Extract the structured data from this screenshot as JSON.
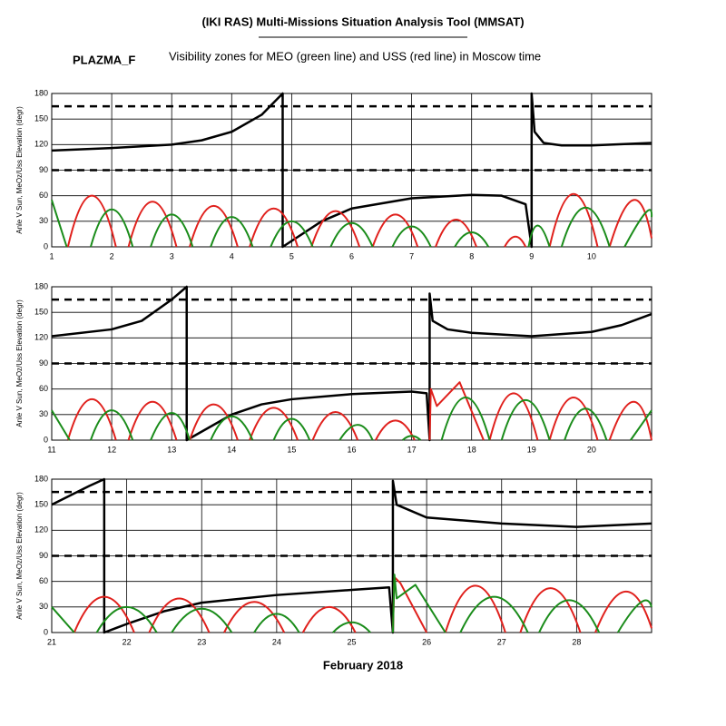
{
  "header": {
    "title": "(IKI RAS) Multi-Missions Situation Analysis Tool (MMSAT)",
    "tag": "PLAZMA_F",
    "subtitle": "Visibility zones for MEO (green line) and USS (red line) in Moscow time",
    "x_label": "February 2018"
  },
  "chart_data": [
    {
      "type": "line",
      "ylabel": "Anle V Sun, MeOz/Uss Elevation (degr)",
      "xlim": [
        1,
        11
      ],
      "xticks": [
        1,
        2,
        3,
        4,
        5,
        6,
        7,
        8,
        9,
        10
      ],
      "ylim": [
        0,
        180
      ],
      "yticks": [
        0,
        30,
        60,
        90,
        120,
        150,
        180
      ],
      "grid": true,
      "hlines": [
        90,
        165
      ],
      "series": [
        {
          "color": "#000000",
          "x": [
            1,
            2,
            3,
            3.5,
            4,
            4.5,
            4.85,
            4.85,
            5.5,
            6,
            7,
            8,
            8.5,
            8.9,
            9.0,
            9.0,
            9.05,
            9.2,
            9.5,
            10,
            11
          ],
          "values": [
            113,
            116,
            120,
            125,
            135,
            155,
            180,
            0,
            30,
            45,
            57,
            61,
            60,
            50,
            0,
            180,
            135,
            122,
            119,
            119,
            122
          ]
        },
        {
          "color": "#e0201c",
          "x": [
            1.27,
            1.67,
            2.07,
            null,
            2.28,
            2.68,
            3.08,
            null,
            3.3,
            3.7,
            4.1,
            null,
            4.3,
            4.7,
            5.1,
            null,
            5.33,
            5.73,
            6.13,
            null,
            6.35,
            6.73,
            7.1,
            null,
            7.4,
            7.74,
            8.08,
            null,
            8.55,
            8.73,
            8.9,
            null,
            9.3,
            9.7,
            10.1,
            null,
            10.3,
            10.7,
            11.0
          ],
          "values": [
            0,
            60,
            0,
            null,
            0,
            53,
            0,
            null,
            0,
            48,
            0,
            null,
            0,
            45,
            0,
            null,
            0,
            42,
            0,
            null,
            0,
            38,
            0,
            null,
            0,
            32,
            0,
            null,
            0,
            12,
            0,
            null,
            0,
            62,
            0,
            null,
            0,
            55,
            10
          ]
        },
        {
          "color": "#1a8c1a",
          "x": [
            1.0,
            1.25,
            null,
            1.65,
            2.0,
            2.35,
            null,
            2.65,
            3.0,
            3.35,
            null,
            3.65,
            4.0,
            4.35,
            null,
            4.65,
            5.0,
            5.35,
            null,
            5.65,
            6.0,
            6.35,
            null,
            6.68,
            7.0,
            7.32,
            null,
            7.72,
            8.0,
            8.28,
            null,
            8.95,
            9.1,
            9.3,
            null,
            9.5,
            9.9,
            10.3,
            null,
            10.55,
            10.9,
            11.0
          ],
          "values": [
            55,
            0,
            null,
            0,
            44,
            0,
            null,
            0,
            38,
            0,
            null,
            0,
            35,
            0,
            null,
            0,
            30,
            0,
            null,
            0,
            28,
            0,
            null,
            0,
            24,
            0,
            null,
            0,
            17,
            0,
            null,
            0,
            25,
            0,
            null,
            0,
            46,
            0,
            null,
            0,
            40,
            35
          ]
        }
      ]
    },
    {
      "type": "line",
      "ylabel": "Anle V Sun, MeOz/Uss Elevation (degr)",
      "xlim": [
        11,
        21
      ],
      "xticks": [
        11,
        12,
        13,
        14,
        15,
        16,
        17,
        18,
        19,
        20
      ],
      "ylim": [
        0,
        180
      ],
      "yticks": [
        0,
        30,
        60,
        90,
        120,
        150,
        180
      ],
      "grid": true,
      "hlines": [
        90,
        165
      ],
      "series": [
        {
          "color": "#000000",
          "x": [
            11,
            12,
            12.5,
            13,
            13.25,
            13.25,
            14,
            14.5,
            15,
            16,
            17,
            17.25,
            17.3,
            17.3,
            17.35,
            17.6,
            18,
            19,
            20,
            20.5,
            21
          ],
          "values": [
            122,
            130,
            140,
            165,
            180,
            0,
            30,
            42,
            48,
            54,
            57,
            55,
            0,
            172,
            140,
            130,
            126,
            122,
            127,
            135,
            148
          ]
        },
        {
          "color": "#e0201c",
          "x": [
            11.27,
            11.67,
            12.07,
            null,
            12.28,
            12.68,
            13.08,
            null,
            13.3,
            13.7,
            14.1,
            null,
            14.3,
            14.7,
            15.1,
            null,
            15.35,
            15.73,
            16.1,
            null,
            16.4,
            16.73,
            17.05,
            null,
            17.3,
            17.32,
            17.42,
            17.8,
            18.2,
            null,
            18.3,
            18.7,
            19.1,
            null,
            19.3,
            19.7,
            20.1,
            null,
            20.3,
            20.7,
            21.0
          ],
          "values": [
            0,
            48,
            0,
            null,
            0,
            45,
            0,
            null,
            0,
            42,
            0,
            null,
            0,
            38,
            0,
            null,
            0,
            33,
            0,
            null,
            0,
            23,
            0,
            null,
            0,
            60,
            40,
            68,
            0,
            null,
            0,
            55,
            0,
            null,
            0,
            50,
            0,
            null,
            0,
            45,
            0
          ]
        },
        {
          "color": "#1a8c1a",
          "x": [
            11.0,
            11.3,
            null,
            11.65,
            12.0,
            12.35,
            null,
            12.65,
            13.0,
            13.3,
            null,
            13.65,
            14.0,
            14.35,
            null,
            14.7,
            15.0,
            15.3,
            null,
            15.8,
            16.1,
            16.35,
            null,
            16.85,
            17.0,
            17.15,
            null,
            17.5,
            17.9,
            18.3,
            null,
            18.5,
            18.9,
            19.3,
            null,
            19.55,
            19.9,
            20.25,
            null,
            20.65,
            21.0
          ],
          "values": [
            35,
            0,
            null,
            0,
            35,
            0,
            null,
            0,
            32,
            0,
            null,
            0,
            28,
            0,
            null,
            0,
            25,
            0,
            null,
            0,
            18,
            0,
            null,
            0,
            5,
            0,
            null,
            0,
            50,
            0,
            null,
            0,
            47,
            0,
            null,
            0,
            37,
            0,
            null,
            0,
            35
          ]
        }
      ]
    },
    {
      "type": "line",
      "ylabel": "Anle V Sun, MeOz/Uss Elevation (degr)",
      "xlim": [
        21,
        29
      ],
      "xticks": [
        21,
        22,
        23,
        24,
        25,
        26,
        27,
        28
      ],
      "ylim": [
        0,
        180
      ],
      "yticks": [
        0,
        30,
        60,
        90,
        120,
        150,
        180
      ],
      "grid": true,
      "hlines": [
        90,
        165
      ],
      "series": [
        {
          "color": "#000000",
          "x": [
            21,
            21.5,
            21.7,
            21.7,
            22,
            22.5,
            23,
            24,
            25,
            25.5,
            25.55,
            25.55,
            25.6,
            26,
            27,
            28,
            29
          ],
          "values": [
            150,
            172,
            180,
            0,
            10,
            25,
            35,
            44,
            50,
            53,
            0,
            178,
            150,
            135,
            128,
            124,
            128
          ]
        },
        {
          "color": "#e0201c",
          "x": [
            21.3,
            21.7,
            22.1,
            null,
            22.3,
            22.7,
            23.1,
            null,
            23.3,
            23.7,
            24.1,
            null,
            24.35,
            24.7,
            25.05,
            null,
            25.55,
            25.57,
            25.65,
            26.0,
            null,
            26.25,
            26.65,
            27.05,
            null,
            27.25,
            27.65,
            28.05,
            null,
            28.25,
            28.65,
            29.0
          ],
          "values": [
            0,
            42,
            0,
            null,
            0,
            40,
            0,
            null,
            0,
            36,
            0,
            null,
            0,
            30,
            0,
            null,
            0,
            65,
            58,
            0,
            null,
            0,
            55,
            0,
            null,
            0,
            52,
            0,
            null,
            0,
            48,
            5
          ]
        },
        {
          "color": "#1a8c1a",
          "x": [
            21.0,
            21.3,
            null,
            21.6,
            22.0,
            22.4,
            null,
            22.6,
            23.0,
            23.4,
            null,
            23.7,
            24.0,
            24.3,
            null,
            24.75,
            25.0,
            25.25,
            null,
            25.55,
            25.57,
            25.6,
            25.85,
            26.25,
            null,
            26.45,
            26.9,
            27.35,
            null,
            27.5,
            27.9,
            28.3,
            null,
            28.55,
            28.85,
            29.0
          ],
          "values": [
            30,
            0,
            null,
            0,
            30,
            0,
            null,
            0,
            28,
            0,
            null,
            0,
            22,
            0,
            null,
            0,
            12,
            0,
            null,
            0,
            68,
            40,
            56,
            0,
            null,
            0,
            42,
            0,
            null,
            0,
            38,
            0,
            null,
            0,
            35,
            30
          ]
        }
      ]
    }
  ]
}
